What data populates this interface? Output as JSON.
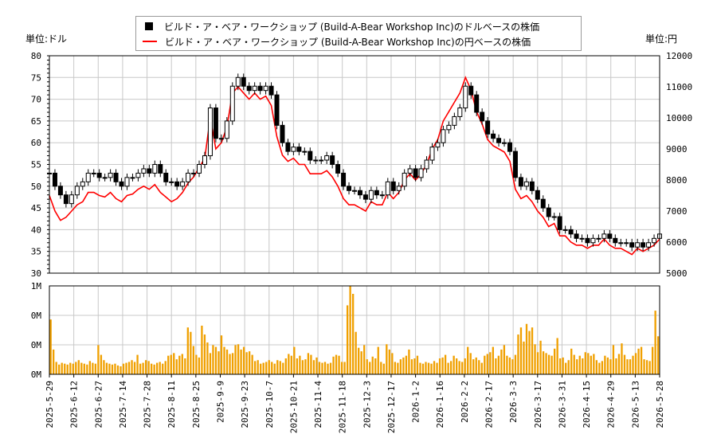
{
  "legend": {
    "usd_label": "ビルド・ア・ベア・ワークショップ (Build-A-Bear Workshop Inc)のドルベースの株価",
    "jpy_label": "ビルド・ア・ベア・ワークショップ (Build-A-Bear Workshop Inc)の円ベースの株価"
  },
  "units": {
    "left": "単位:ドル",
    "right": "単位:円"
  },
  "colors": {
    "candle": "#000000",
    "jpy_line": "#ff0000",
    "volume": "#f0a000",
    "grid": "#c8c8c8"
  },
  "chart_data": [
    {
      "type": "line",
      "subtype": "candlestick + line overlay",
      "x_tick_labels": [
        "2025-5-29",
        "2025-6-12",
        "2025-6-27",
        "2025-7-14",
        "2025-7-28",
        "2025-8-11",
        "2025-8-25",
        "2025-9-9",
        "2025-9-23",
        "2025-10-7",
        "2025-10-21",
        "2025-11-4",
        "2025-11-18",
        "2025-12-3",
        "2025-12-17",
        "2026-1-2",
        "2026-1-16",
        "2026-2-2",
        "2026-2-17",
        "2026-3-3",
        "2026-3-17",
        "2026-3-31",
        "2026-4-15",
        "2026-4-29",
        "2026-5-13",
        "2026-5-28"
      ],
      "y_left": {
        "ylim": [
          30,
          80
        ],
        "ticks": [
          30,
          35,
          40,
          45,
          50,
          55,
          60,
          65,
          70,
          75,
          80
        ]
      },
      "y_right": {
        "ylim": [
          5000,
          12000
        ],
        "ticks": [
          5000,
          6000,
          7000,
          8000,
          9000,
          10000,
          11000,
          12000
        ]
      },
      "series": [
        {
          "name": "ビルド・ア・ベア・ワークショップ (Build-A-Bear Workshop Inc)のドルベースの株価",
          "axis": "left",
          "close": [
            53,
            50,
            48,
            46,
            48,
            50,
            51,
            53,
            53,
            52,
            52,
            53,
            51,
            50,
            52,
            52,
            53,
            54,
            53,
            55,
            53,
            51,
            51,
            50,
            51,
            53,
            53,
            55,
            57,
            68,
            61,
            61,
            65,
            73,
            75,
            73,
            72,
            73,
            72,
            73,
            71,
            64,
            60,
            58,
            59,
            58,
            58,
            56,
            56,
            56,
            57,
            55,
            53,
            50,
            49,
            49,
            48,
            47,
            49,
            48,
            48,
            51,
            49,
            50,
            53,
            54,
            52,
            54,
            56,
            59,
            60,
            63,
            64,
            66,
            68,
            73,
            71,
            67,
            65,
            62,
            61,
            60,
            60,
            58,
            52,
            50,
            51,
            49,
            47,
            45,
            43,
            43,
            40,
            40,
            39,
            38,
            38,
            37,
            38,
            38,
            39,
            38,
            37,
            37,
            37,
            36,
            37,
            36,
            37,
            38,
            39
          ]
        },
        {
          "name": "ビルド・ア・ベア・ワークショップ (Build-A-Bear Workshop Inc)の円ベースの株価",
          "axis": "right",
          "values": [
            7500,
            7000,
            6700,
            6800,
            7000,
            7200,
            7300,
            7600,
            7600,
            7500,
            7450,
            7600,
            7400,
            7300,
            7500,
            7550,
            7700,
            7800,
            7700,
            7850,
            7600,
            7450,
            7300,
            7400,
            7600,
            7900,
            8100,
            8400,
            8700,
            10000,
            9000,
            9200,
            9700,
            10800,
            11000,
            10800,
            10600,
            10800,
            10600,
            10700,
            10400,
            9400,
            8800,
            8600,
            8700,
            8500,
            8500,
            8200,
            8200,
            8200,
            8300,
            8100,
            7800,
            7400,
            7200,
            7200,
            7100,
            7000,
            7300,
            7200,
            7200,
            7600,
            7400,
            7600,
            8000,
            8200,
            8000,
            8200,
            8500,
            9000,
            9300,
            9900,
            10200,
            10500,
            10800,
            11300,
            10900,
            10200,
            9800,
            9300,
            9100,
            9000,
            8900,
            8600,
            7700,
            7400,
            7500,
            7300,
            7000,
            6800,
            6500,
            6600,
            6200,
            6200,
            6000,
            5900,
            5900,
            5800,
            5900,
            5900,
            6100,
            5900,
            5800,
            5800,
            5700,
            5600,
            5800,
            5700,
            5800,
            5900,
            6100
          ]
        }
      ]
    },
    {
      "type": "bar",
      "name": "volume",
      "y_tick_labels": [
        "0M",
        "0M",
        "0M",
        "1M"
      ],
      "values": [
        0.62,
        0.28,
        0.14,
        0.11,
        0.13,
        0.12,
        0.11,
        0.13,
        0.12,
        0.14,
        0.16,
        0.13,
        0.12,
        0.11,
        0.15,
        0.13,
        0.12,
        0.33,
        0.22,
        0.16,
        0.13,
        0.12,
        0.11,
        0.12,
        0.1,
        0.09,
        0.12,
        0.13,
        0.14,
        0.16,
        0.14,
        0.22,
        0.12,
        0.13,
        0.16,
        0.15,
        0.12,
        0.11,
        0.13,
        0.14,
        0.12,
        0.15,
        0.21,
        0.22,
        0.24,
        0.17,
        0.21,
        0.23,
        0.18,
        0.53,
        0.48,
        0.32,
        0.22,
        0.19,
        0.55,
        0.45,
        0.36,
        0.24,
        0.33,
        0.31,
        0.26,
        0.44,
        0.31,
        0.28,
        0.23,
        0.24,
        0.33,
        0.34,
        0.28,
        0.31,
        0.25,
        0.26,
        0.22,
        0.15,
        0.16,
        0.12,
        0.13,
        0.14,
        0.16,
        0.14,
        0.12,
        0.16,
        0.15,
        0.13,
        0.18,
        0.23,
        0.21,
        0.31,
        0.18,
        0.21,
        0.16,
        0.17,
        0.24,
        0.22,
        0.16,
        0.19,
        0.14,
        0.13,
        0.14,
        0.12,
        0.13,
        0.2,
        0.22,
        0.21,
        0.14,
        0.14,
        0.78,
        1.0,
        0.91,
        0.48,
        0.3,
        0.26,
        0.33,
        0.17,
        0.14,
        0.2,
        0.18,
        0.31,
        0.14,
        0.12,
        0.34,
        0.28,
        0.24,
        0.14,
        0.13,
        0.17,
        0.19,
        0.21,
        0.28,
        0.17,
        0.18,
        0.21,
        0.13,
        0.12,
        0.14,
        0.13,
        0.12,
        0.15,
        0.13,
        0.18,
        0.19,
        0.22,
        0.13,
        0.15,
        0.21,
        0.18,
        0.15,
        0.14,
        0.18,
        0.31,
        0.24,
        0.17,
        0.19,
        0.16,
        0.13,
        0.21,
        0.23,
        0.25,
        0.31,
        0.18,
        0.21,
        0.28,
        0.33,
        0.21,
        0.19,
        0.17,
        0.22,
        0.45,
        0.53,
        0.37,
        0.57,
        0.49,
        0.53,
        0.34,
        0.25,
        0.38,
        0.26,
        0.24,
        0.22,
        0.21,
        0.29,
        0.41,
        0.18,
        0.19,
        0.13,
        0.16,
        0.29,
        0.22,
        0.17,
        0.21,
        0.18,
        0.25,
        0.24,
        0.21,
        0.23,
        0.16,
        0.13,
        0.15,
        0.21,
        0.19,
        0.17,
        0.33,
        0.18,
        0.23,
        0.35,
        0.22,
        0.17,
        0.17,
        0.21,
        0.24,
        0.29,
        0.31,
        0.17,
        0.16,
        0.15,
        0.31,
        0.72,
        0.43
      ]
    }
  ]
}
